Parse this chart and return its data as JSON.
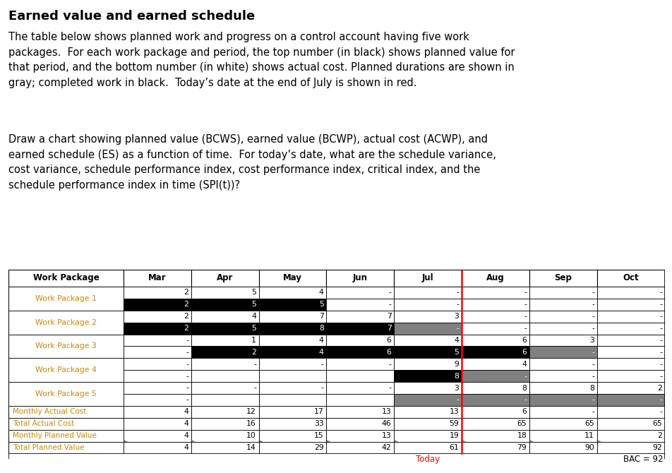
{
  "title": "Earned value and earned schedule",
  "para1": "The table below shows planned work and progress on a control account having five work\npackages.  For each work package and period, the top number (in black) shows planned value for\nthat period, and the bottom number (in white) shows actual cost. Planned durations are shown in\ngray; completed work in black.  Today’s date at the end of July is shown in red.",
  "para2": "Draw a chart showing planned value (BCWS), earned value (BCWP), actual cost (ACWP), and\nearned schedule (ES) as a function of time.  For today’s date, what are the schedule variance,\ncost variance, schedule performance index, cost performance index, critical index, and the\nschedule performance index in time (SPI(t))?",
  "col_headers": [
    "Work Package",
    "Mar",
    "Apr",
    "May",
    "Jun",
    "Jul",
    "Aug",
    "Sep",
    "Oct"
  ],
  "row_labels": [
    "Work Package 1",
    "Work Package 2",
    "Work Package 3",
    "Work Package 4",
    "Work Package 5"
  ],
  "summary_rows": [
    "Monthly Actual Cost",
    "Total Actual Cost",
    "Monthly Planned Value",
    "Total Planned Value"
  ],
  "wp1_top": [
    "2",
    "5",
    "4",
    "-",
    "-",
    "-",
    "-",
    "-"
  ],
  "wp1_bottom": [
    "2",
    "5",
    "5",
    "-",
    "-",
    "-",
    "-",
    "-"
  ],
  "wp1_top_bg": [
    "white",
    "white",
    "white",
    "white",
    "white",
    "white",
    "white",
    "white"
  ],
  "wp1_bottom_bg": [
    "black",
    "black",
    "black",
    "white",
    "white",
    "white",
    "white",
    "white"
  ],
  "wp2_top": [
    "2",
    "4",
    "7",
    "7",
    "3",
    "-",
    "-",
    "-"
  ],
  "wp2_bottom": [
    "2",
    "5",
    "8",
    "7",
    "-",
    "-",
    "-",
    "-"
  ],
  "wp2_top_bg": [
    "white",
    "white",
    "white",
    "white",
    "white",
    "white",
    "white",
    "white"
  ],
  "wp2_bottom_bg": [
    "black",
    "black",
    "black",
    "black",
    "gray",
    "white",
    "white",
    "white"
  ],
  "wp3_top": [
    "-",
    "1",
    "4",
    "6",
    "4",
    "6",
    "3",
    "-"
  ],
  "wp3_bottom": [
    "-",
    "2",
    "4",
    "6",
    "5",
    "6",
    "-",
    "-"
  ],
  "wp3_top_bg": [
    "white",
    "white",
    "white",
    "white",
    "white",
    "white",
    "white",
    "white"
  ],
  "wp3_bottom_bg": [
    "white",
    "black",
    "black",
    "black",
    "black",
    "black",
    "gray",
    "white"
  ],
  "wp4_top": [
    "-",
    "-",
    "-",
    "-",
    "9",
    "4",
    "-",
    "-"
  ],
  "wp4_bottom": [
    "-",
    "",
    "",
    "",
    "8",
    "-",
    "-",
    "-"
  ],
  "wp4_top_bg": [
    "white",
    "white",
    "white",
    "white",
    "white",
    "white",
    "white",
    "white"
  ],
  "wp4_bottom_bg": [
    "white",
    "white",
    "white",
    "white",
    "black",
    "gray",
    "white",
    "white"
  ],
  "wp5_top": [
    "-",
    "-",
    "-",
    "-",
    "3",
    "8",
    "8",
    "2"
  ],
  "wp5_bottom": [
    "-",
    "",
    "",
    "",
    "-",
    "-",
    "-",
    "-"
  ],
  "wp5_top_bg": [
    "white",
    "white",
    "white",
    "white",
    "white",
    "white",
    "white",
    "white"
  ],
  "wp5_bottom_bg": [
    "white",
    "white",
    "white",
    "white",
    "gray",
    "gray",
    "gray",
    "gray"
  ],
  "monthly_actual_cost": [
    "4",
    "12",
    "17",
    "13",
    "13",
    "6",
    "-",
    "-"
  ],
  "total_actual_cost": [
    "4",
    "16",
    "33",
    "46",
    "59",
    "65",
    "65",
    "65"
  ],
  "monthly_planned_value": [
    "4",
    "10",
    "15",
    "13",
    "19",
    "18",
    "11",
    "2"
  ],
  "total_planned_value": [
    "4",
    "14",
    "29",
    "42",
    "61",
    "79",
    "90",
    "92"
  ],
  "today_label": "Today",
  "bac_label": "BAC = 92",
  "wp_label_color": "#cc8800",
  "summary_label_color": "#cc8800",
  "fig_width": 9.53,
  "fig_height": 6.7
}
